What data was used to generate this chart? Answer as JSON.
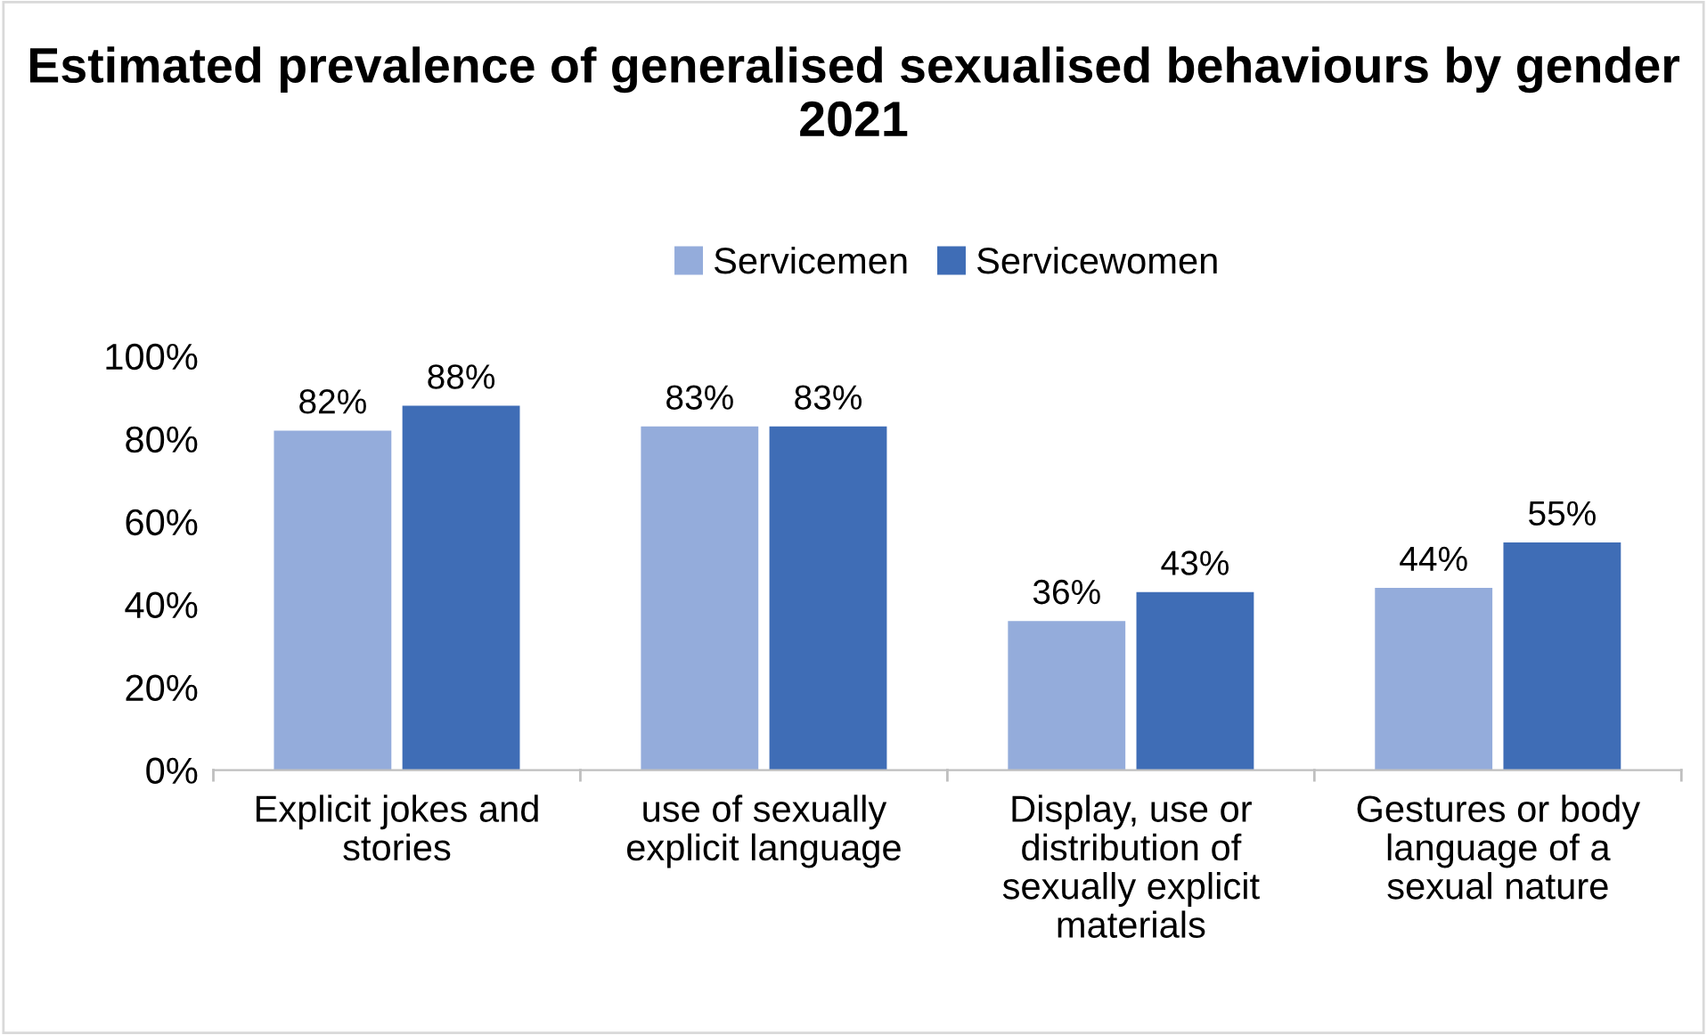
{
  "chart_data": {
    "type": "bar",
    "title": "Estimated prevalence of generalised sexualised behaviours by gender 2021",
    "categories": [
      "Explicit jokes and stories",
      "use of sexually explicit language",
      "Display, use or distribution of sexually explicit materials",
      "Gestures or body language of a sexual nature"
    ],
    "series": [
      {
        "name": "Servicemen",
        "color": "#94acdb",
        "values": [
          82,
          83,
          36,
          44
        ],
        "value_labels": [
          "82%",
          "83%",
          "36%",
          "44%"
        ]
      },
      {
        "name": "Servicewomen",
        "color": "#3f6db6",
        "values": [
          88,
          83,
          43,
          55
        ],
        "value_labels": [
          "88%",
          "83%",
          "43%",
          "55%"
        ]
      }
    ],
    "ylim": [
      0,
      100
    ],
    "yticks": [
      {
        "value": 0,
        "label": "0%"
      },
      {
        "value": 20,
        "label": "20%"
      },
      {
        "value": 40,
        "label": "40%"
      },
      {
        "value": 60,
        "label": "60%"
      },
      {
        "value": 80,
        "label": "80%"
      },
      {
        "value": 100,
        "label": "100%"
      }
    ],
    "grid": false,
    "legend": "top"
  }
}
